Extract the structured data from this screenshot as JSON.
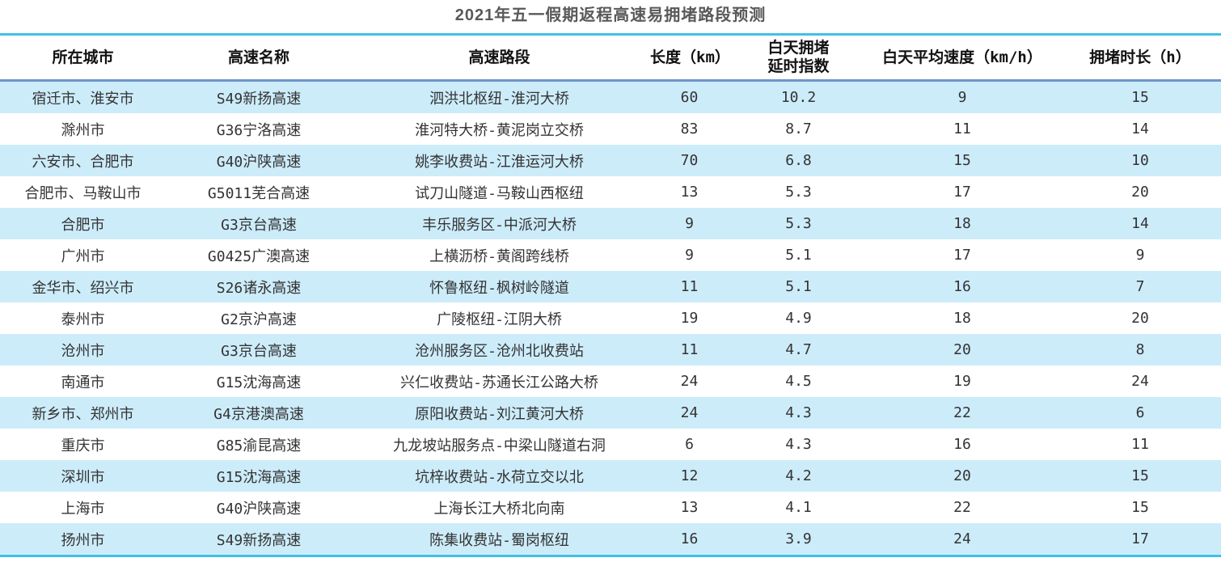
{
  "title": "2021年五一假期返程高速易拥堵路段预测",
  "colors": {
    "accent_line": "#3fc0e8",
    "header_underline": "#6f94cb",
    "row_alt_background": "#cdecfa",
    "title_color": "#595959",
    "header_text": "#111111",
    "body_text": "#333333"
  },
  "chart_data": {
    "type": "table",
    "title": "2021年五一假期返程高速易拥堵路段预测",
    "columns": [
      "所在城市",
      "高速名称",
      "高速路段",
      "长度（km）",
      "白天拥堵延时指数",
      "白天平均速度（km/h）",
      "拥堵时长（h）"
    ],
    "column_display": [
      "所在城市",
      "高速名称",
      "高速路段",
      "长度（km）",
      "白天拥堵\n延时指数",
      "白天平均速度（km/h）",
      "拥堵时长（h）"
    ],
    "rows": [
      [
        "宿迁市、淮安市",
        "S49新扬高速",
        "泗洪北枢纽-淮河大桥",
        60,
        10.2,
        9,
        15
      ],
      [
        "滁州市",
        "G36宁洛高速",
        "淮河特大桥-黄泥岗立交桥",
        83,
        8.7,
        11,
        14
      ],
      [
        "六安市、合肥市",
        "G40沪陕高速",
        "姚李收费站-江淮运河大桥",
        70,
        6.8,
        15,
        10
      ],
      [
        "合肥市、马鞍山市",
        "G5011芜合高速",
        "试刀山隧道-马鞍山西枢纽",
        13,
        5.3,
        17,
        20
      ],
      [
        "合肥市",
        "G3京台高速",
        "丰乐服务区-中派河大桥",
        9,
        5.3,
        18,
        14
      ],
      [
        "广州市",
        "G0425广澳高速",
        "上横沥桥-黄阁跨线桥",
        9,
        5.1,
        17,
        9
      ],
      [
        "金华市、绍兴市",
        "S26诸永高速",
        "怀鲁枢纽-枫树岭隧道",
        11,
        5.1,
        16,
        7
      ],
      [
        "泰州市",
        "G2京沪高速",
        "广陵枢纽-江阴大桥",
        19,
        4.9,
        18,
        20
      ],
      [
        "沧州市",
        "G3京台高速",
        "沧州服务区-沧州北收费站",
        11,
        4.7,
        20,
        8
      ],
      [
        "南通市",
        "G15沈海高速",
        "兴仁收费站-苏通长江公路大桥",
        24,
        4.5,
        19,
        24
      ],
      [
        "新乡市、郑州市",
        "G4京港澳高速",
        "原阳收费站-刘江黄河大桥",
        24,
        4.3,
        22,
        6
      ],
      [
        "重庆市",
        "G85渝昆高速",
        "九龙坡站服务点-中梁山隧道右洞",
        6,
        4.3,
        16,
        11
      ],
      [
        "深圳市",
        "G15沈海高速",
        "坑梓收费站-水荷立交以北",
        12,
        4.2,
        20,
        15
      ],
      [
        "上海市",
        "G40沪陕高速",
        "上海长江大桥北向南",
        13,
        4.1,
        22,
        15
      ],
      [
        "扬州市",
        "S49新扬高速",
        "陈集收费站-蜀岗枢纽",
        16,
        3.9,
        24,
        17
      ]
    ]
  }
}
